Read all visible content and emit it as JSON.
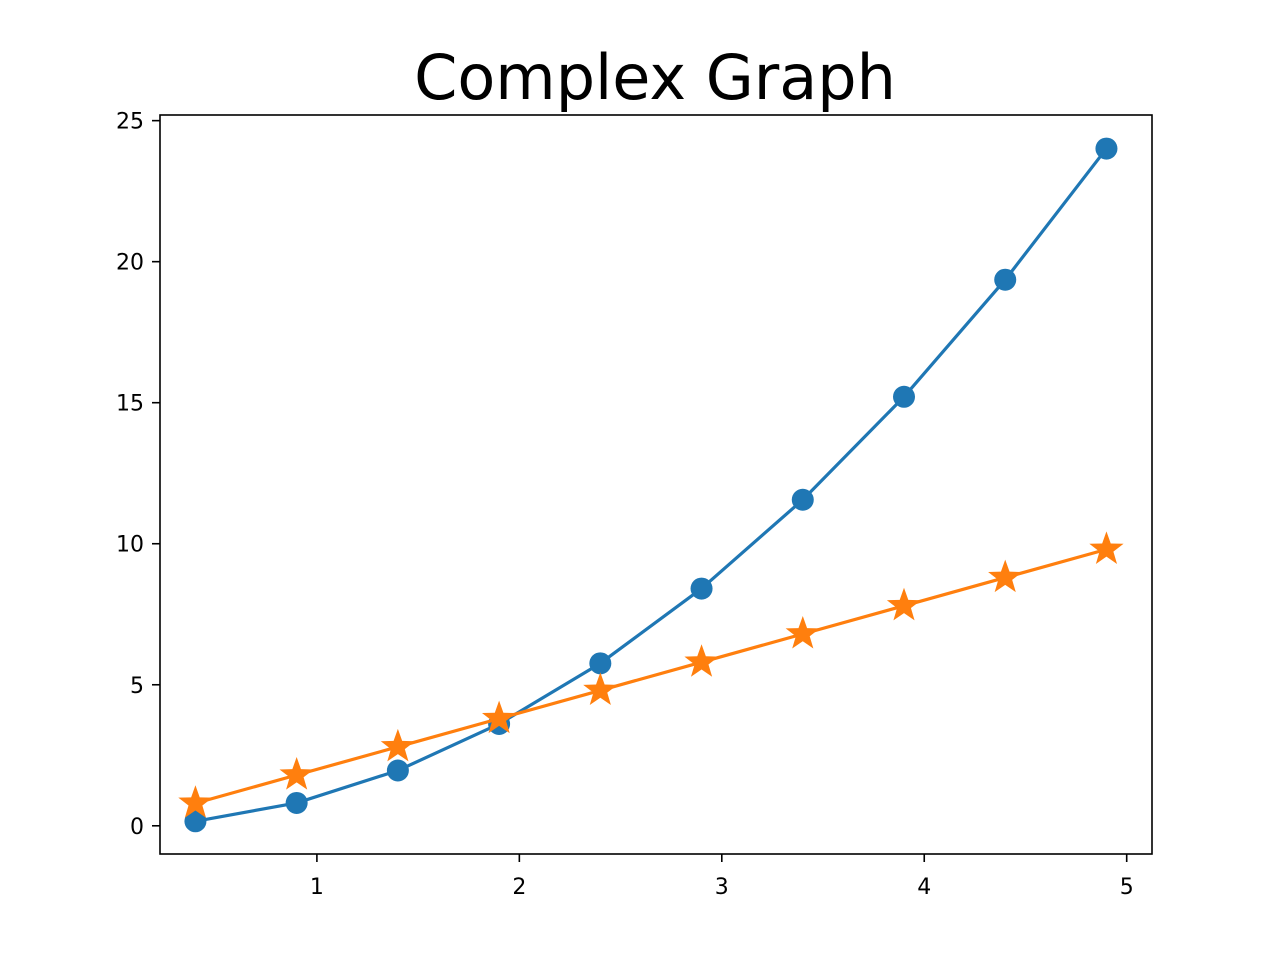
{
  "chart_data": {
    "type": "line",
    "title": "Complex Graph",
    "xlabel": "",
    "ylabel": "",
    "xlim": [
      0.225,
      5.125
    ],
    "ylim": [
      -1.0,
      25.2
    ],
    "grid": false,
    "xticks": [
      1,
      2,
      3,
      4,
      5
    ],
    "yticks": [
      0,
      5,
      10,
      15,
      20,
      25
    ],
    "x": [
      0.4,
      0.9,
      1.4,
      1.9,
      2.4,
      2.9,
      3.4,
      3.9,
      4.4,
      4.9
    ],
    "series": [
      {
        "color": "#1f77b4",
        "marker": "circle",
        "values": [
          0.16,
          0.81,
          1.96,
          3.61,
          5.76,
          8.41,
          11.56,
          15.21,
          19.36,
          24.01
        ]
      },
      {
        "color": "#ff7f0e",
        "marker": "star",
        "values": [
          0.8,
          1.8,
          2.8,
          3.8,
          4.8,
          5.8,
          6.8,
          7.8,
          8.8,
          9.8
        ]
      }
    ]
  }
}
